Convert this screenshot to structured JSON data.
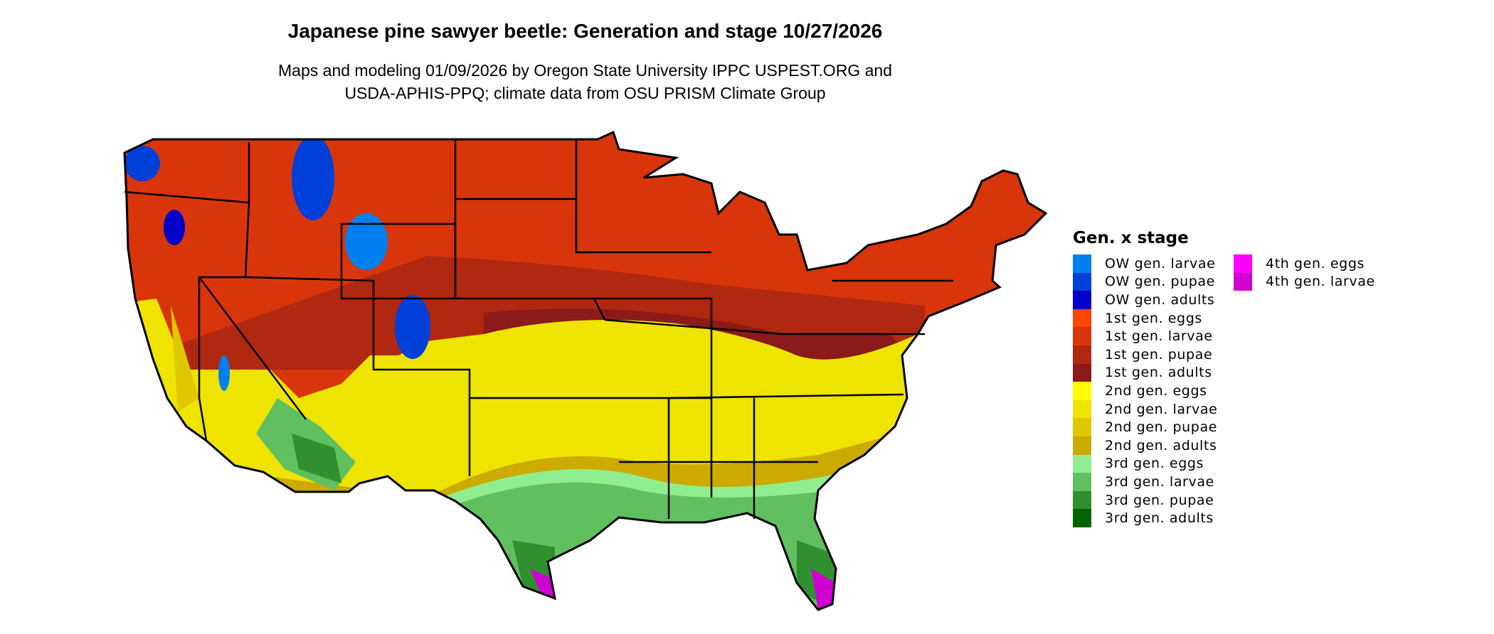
{
  "chart_data": {
    "type": "heatmap",
    "title": "Japanese pine sawyer beetle: Generation and stage 10/27/2026",
    "subtitle_lines": [
      "Maps and modeling 01/09/2026 by Oregon State University IPPC USPEST.ORG and",
      "USDA-APHIS-PPQ; climate data from OSU PRISM Climate Group"
    ],
    "legend_title": "Gen. x stage",
    "legend_placement": "right",
    "legend": [
      {
        "label": "OW gen. larvae",
        "color": "#0080f0"
      },
      {
        "label": "OW gen. pupae",
        "color": "#0040d8"
      },
      {
        "label": "OW gen. adults",
        "color": "#0000c8"
      },
      {
        "label": "1st gen. eggs",
        "color": "#ff4500"
      },
      {
        "label": "1st gen. larvae",
        "color": "#d8360a"
      },
      {
        "label": "1st gen. pupae",
        "color": "#b02810"
      },
      {
        "label": "1st gen. adults",
        "color": "#8b1a1a"
      },
      {
        "label": "2nd gen. eggs",
        "color": "#ffff00"
      },
      {
        "label": "2nd gen. larvae",
        "color": "#eee400"
      },
      {
        "label": "2nd gen. pupae",
        "color": "#e0c800"
      },
      {
        "label": "2nd gen. adults",
        "color": "#ccaa00"
      },
      {
        "label": "3rd gen. eggs",
        "color": "#90ee90"
      },
      {
        "label": "3rd gen. larvae",
        "color": "#60c060"
      },
      {
        "label": "3rd gen. pupae",
        "color": "#309030"
      },
      {
        "label": "3rd gen. adults",
        "color": "#006400"
      },
      {
        "label": "4th gen. eggs",
        "color": "#ff00ff"
      },
      {
        "label": "4th gen. larvae",
        "color": "#d000d0"
      }
    ],
    "region": "Contiguous United States"
  }
}
